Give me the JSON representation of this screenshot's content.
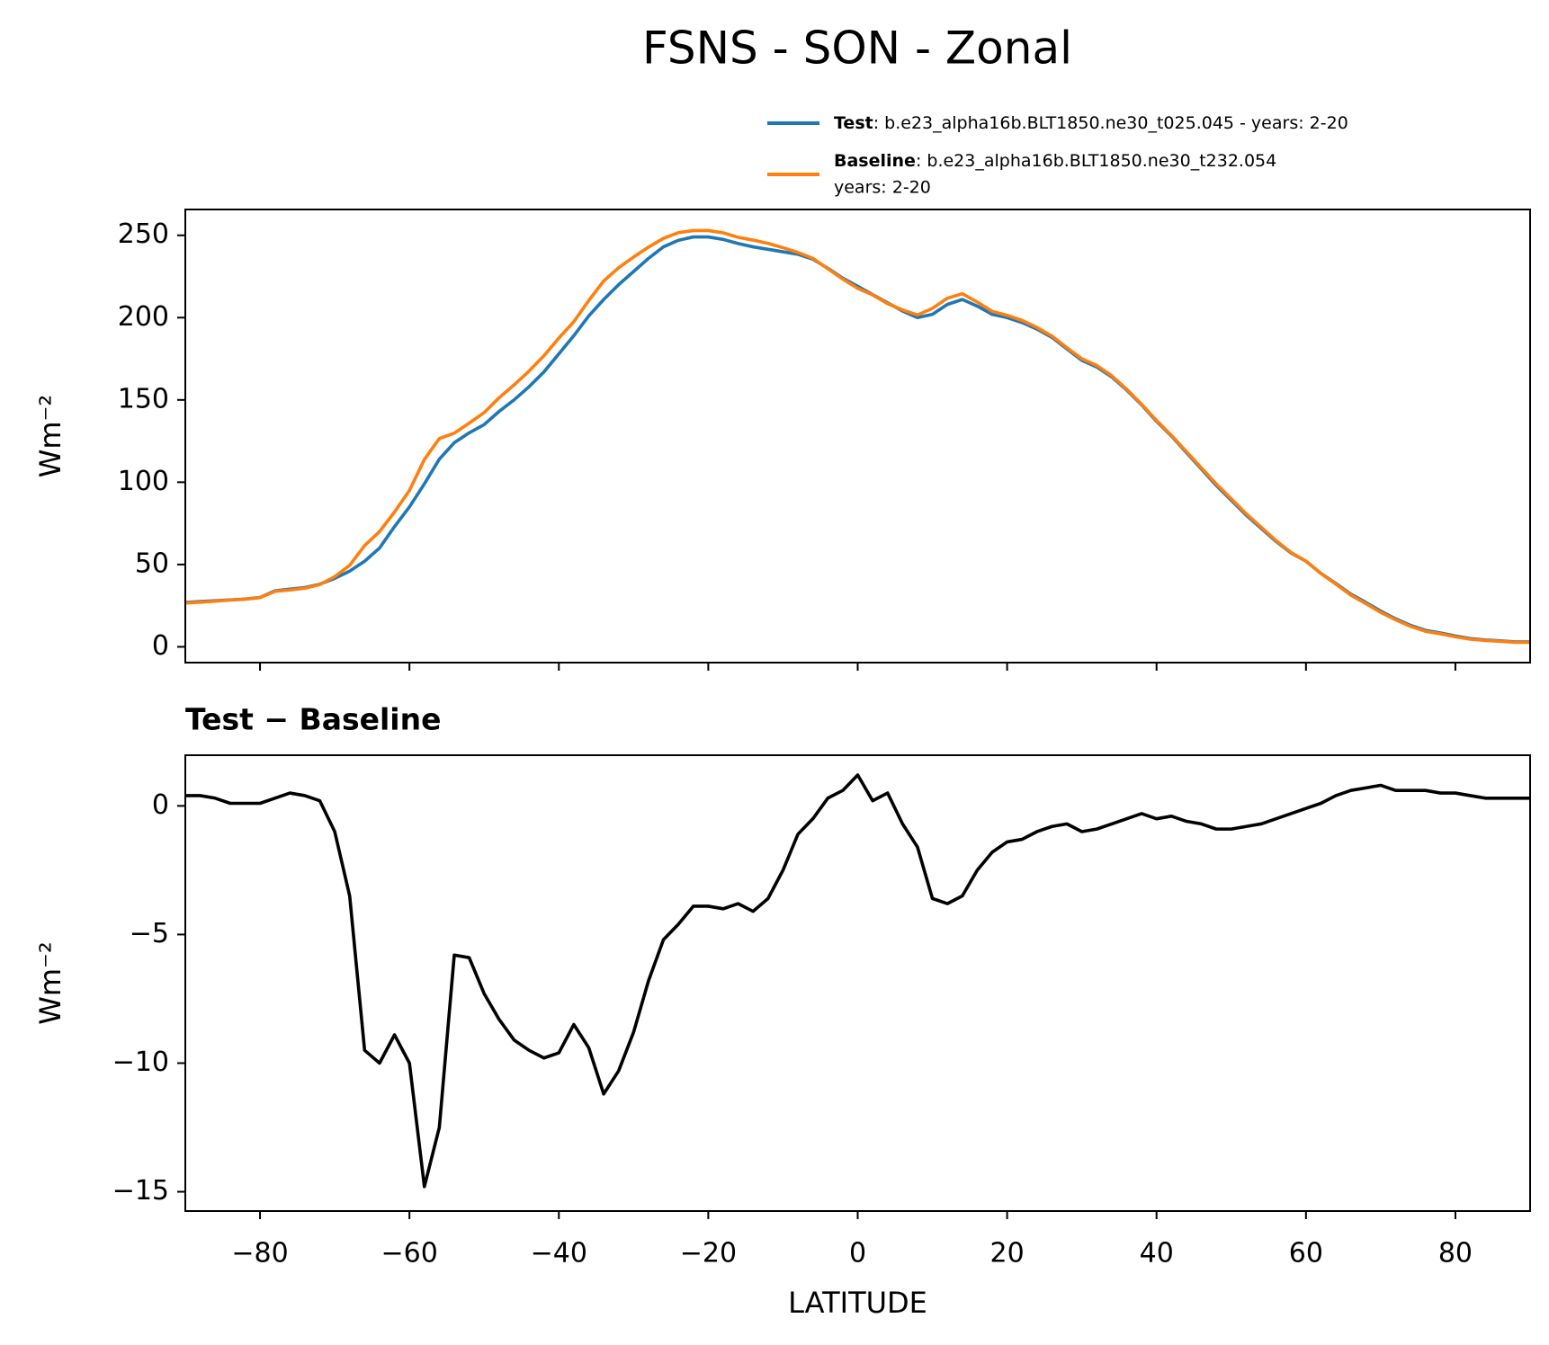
{
  "chart_data": [
    {
      "type": "line",
      "title": "FSNS - SON - Zonal",
      "ylabel": "Wm⁻²",
      "x": [
        -90,
        -88,
        -86,
        -84,
        -82,
        -80,
        -78,
        -76,
        -74,
        -72,
        -70,
        -68,
        -66,
        -64,
        -62,
        -60,
        -58,
        -56,
        -54,
        -52,
        -50,
        -48,
        -46,
        -44,
        -42,
        -40,
        -38,
        -36,
        -34,
        -32,
        -30,
        -28,
        -26,
        -24,
        -22,
        -20,
        -18,
        -16,
        -14,
        -12,
        -10,
        -8,
        -6,
        -4,
        -2,
        0,
        2,
        4,
        6,
        8,
        10,
        12,
        14,
        16,
        18,
        20,
        22,
        24,
        26,
        28,
        30,
        32,
        34,
        36,
        38,
        40,
        42,
        44,
        46,
        48,
        50,
        52,
        54,
        56,
        58,
        60,
        62,
        64,
        66,
        68,
        70,
        72,
        74,
        76,
        78,
        80,
        82,
        84,
        86,
        88,
        90
      ],
      "series": [
        {
          "name": "Test",
          "description": [
            ": b.e23_alpha16b.BLT1850.ne30_t025.045 - years: 2-20"
          ],
          "color": "#1f77b4",
          "values": [
            27,
            27.5,
            28,
            28.5,
            29,
            30,
            34,
            35,
            36,
            38,
            41.6,
            46,
            52,
            60,
            73,
            85,
            99,
            114,
            124,
            130,
            135,
            143,
            150,
            158,
            167,
            178,
            189,
            201,
            211,
            220,
            228,
            236,
            243,
            247,
            249,
            249,
            247.5,
            245,
            243,
            241.5,
            240,
            238.5,
            235.5,
            230,
            224,
            219,
            214,
            209,
            204,
            200,
            202,
            208,
            211,
            207,
            202,
            200,
            197,
            193,
            188,
            181,
            174,
            170,
            164,
            156,
            147,
            137,
            128,
            118,
            108,
            98,
            89,
            80,
            72,
            64,
            57,
            52,
            44.6,
            38.5,
            32,
            27,
            21.7,
            17,
            13,
            10,
            8.4,
            6.6,
            5,
            4.2,
            3.6,
            3,
            3
          ]
        },
        {
          "name": "Baseline",
          "description": [
            ": b.e23_alpha16b.BLT1850.ne30_t232.054",
            "years: 2-20"
          ],
          "color": "#ff7f0e",
          "values": [
            26.6,
            27.1,
            27.7,
            28.4,
            28.9,
            29.9,
            33.7,
            34.5,
            35.6,
            37.8,
            42.6,
            49.5,
            61.5,
            70,
            81.9,
            95,
            113.8,
            126.5,
            129.8,
            135.9,
            142.3,
            151.3,
            159.1,
            167.5,
            176.8,
            187.6,
            197.5,
            210.4,
            222.2,
            230.3,
            236.8,
            242.8,
            248.2,
            251.6,
            252.9,
            252.9,
            251.5,
            248.8,
            247.1,
            245.1,
            242.5,
            239.6,
            236,
            229.7,
            223.4,
            217.8,
            213.8,
            208.5,
            204.7,
            201.6,
            205.6,
            211.8,
            214.5,
            209.5,
            203.8,
            201.4,
            198.3,
            194,
            188.8,
            181.7,
            175,
            170.9,
            164.7,
            156.5,
            147.3,
            137.5,
            128.4,
            118.6,
            108.7,
            98.9,
            89.9,
            80.8,
            72.7,
            64.5,
            57.3,
            52.1,
            44.5,
            38.1,
            31.4,
            26.3,
            20.9,
            16.4,
            12.4,
            9.4,
            7.9,
            6.1,
            4.6,
            3.9,
            3.3,
            2.7,
            2.7
          ]
        }
      ],
      "xlim": [
        -90,
        90
      ],
      "ylim": [
        -9.6,
        265.7
      ],
      "xticks": [
        -80,
        -60,
        -40,
        -20,
        0,
        20,
        40,
        60,
        80
      ],
      "xticklabels": false,
      "yticks": [
        0,
        50,
        100,
        150,
        200,
        250
      ],
      "grid": false,
      "legend": "upper right"
    },
    {
      "type": "line",
      "title": "Test − Baseline",
      "ylabel": "Wm⁻²",
      "xlabel": "LATITUDE",
      "x": [
        -90,
        -88,
        -86,
        -84,
        -82,
        -80,
        -78,
        -76,
        -74,
        -72,
        -70,
        -68,
        -66,
        -64,
        -62,
        -60,
        -58,
        -56,
        -54,
        -52,
        -50,
        -48,
        -46,
        -44,
        -42,
        -40,
        -38,
        -36,
        -34,
        -32,
        -30,
        -28,
        -26,
        -24,
        -22,
        -20,
        -18,
        -16,
        -14,
        -12,
        -10,
        -8,
        -6,
        -4,
        -2,
        0,
        2,
        4,
        6,
        8,
        10,
        12,
        14,
        16,
        18,
        20,
        22,
        24,
        26,
        28,
        30,
        32,
        34,
        36,
        38,
        40,
        42,
        44,
        46,
        48,
        50,
        52,
        54,
        56,
        58,
        60,
        62,
        64,
        66,
        68,
        70,
        72,
        74,
        76,
        78,
        80,
        82,
        84,
        86,
        88,
        90
      ],
      "series": [
        {
          "color": "#000000",
          "values": [
            0.4,
            0.4,
            0.3,
            0.1,
            0.1,
            0.1,
            0.3,
            0.5,
            0.4,
            0.2,
            -1,
            -3.5,
            -9.5,
            -10,
            -8.9,
            -10,
            -14.8,
            -12.5,
            -5.8,
            -5.9,
            -7.3,
            -8.3,
            -9.1,
            -9.5,
            -9.8,
            -9.6,
            -8.5,
            -9.4,
            -11.2,
            -10.3,
            -8.8,
            -6.8,
            -5.2,
            -4.6,
            -3.9,
            -3.9,
            -4.0,
            -3.8,
            -4.1,
            -3.6,
            -2.5,
            -1.1,
            -0.5,
            0.3,
            0.6,
            1.2,
            0.2,
            0.5,
            -0.7,
            -1.6,
            -3.6,
            -3.8,
            -3.5,
            -2.5,
            -1.8,
            -1.4,
            -1.3,
            -1.0,
            -0.8,
            -0.7,
            -1.0,
            -0.9,
            -0.7,
            -0.5,
            -0.3,
            -0.5,
            -0.4,
            -0.6,
            -0.7,
            -0.9,
            -0.9,
            -0.8,
            -0.7,
            -0.5,
            -0.3,
            -0.1,
            0.1,
            0.4,
            0.6,
            0.7,
            0.8,
            0.6,
            0.6,
            0.6,
            0.5,
            0.5,
            0.4,
            0.3,
            0.3,
            0.3,
            0.3
          ]
        }
      ],
      "xlim": [
        -90,
        90
      ],
      "ylim": [
        -15.75,
        1.97
      ],
      "xticks": [
        {
          "value": -80,
          "label": "−80"
        },
        {
          "value": -60,
          "label": "−60"
        },
        {
          "value": -40,
          "label": "−40"
        },
        {
          "value": -20,
          "label": "−20"
        },
        0,
        20,
        40,
        60,
        80
      ],
      "yticks": [
        {
          "value": -15,
          "label": "−15"
        },
        {
          "value": -10,
          "label": "−10"
        },
        {
          "value": -5,
          "label": "−5"
        },
        0
      ],
      "grid": false
    }
  ]
}
